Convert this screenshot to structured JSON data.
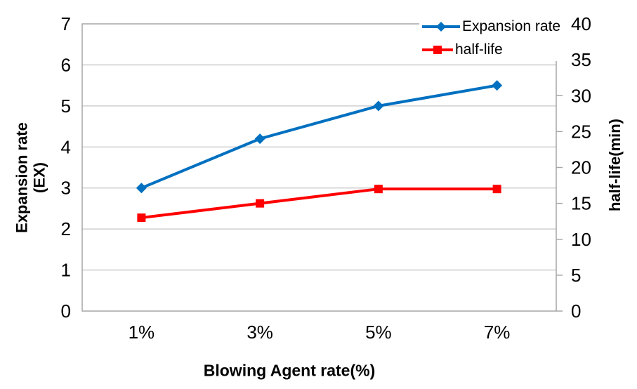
{
  "chart_data": {
    "type": "line",
    "categories": [
      "1%",
      "3%",
      "5%",
      "7%"
    ],
    "series": [
      {
        "name": "Expansion rate",
        "axis": "left",
        "color": "#0070C0",
        "marker": "diamond",
        "values": [
          3.0,
          4.2,
          5.0,
          5.5
        ]
      },
      {
        "name": "half-life",
        "axis": "right",
        "color": "#FF0000",
        "marker": "square",
        "values": [
          13,
          15,
          17,
          17
        ]
      }
    ],
    "left_axis": {
      "label_line1": "Expansion rate",
      "label_line2": "(EX)",
      "min": 0,
      "max": 7,
      "ticks": [
        0,
        1,
        2,
        3,
        4,
        5,
        6,
        7
      ]
    },
    "right_axis": {
      "label": "half-life(min)",
      "min": 0,
      "max": 40,
      "ticks": [
        0,
        5,
        10,
        15,
        20,
        25,
        30,
        35,
        40
      ]
    },
    "x_axis": {
      "label": "Blowing Agent rate(%)"
    },
    "legend": {
      "position": "top-right"
    },
    "grid": true,
    "style": {
      "grid_color": "#C6C6C6",
      "axis_color": "#A6A6A6",
      "background": "#FFFFFF",
      "text_color": "#000000"
    }
  }
}
